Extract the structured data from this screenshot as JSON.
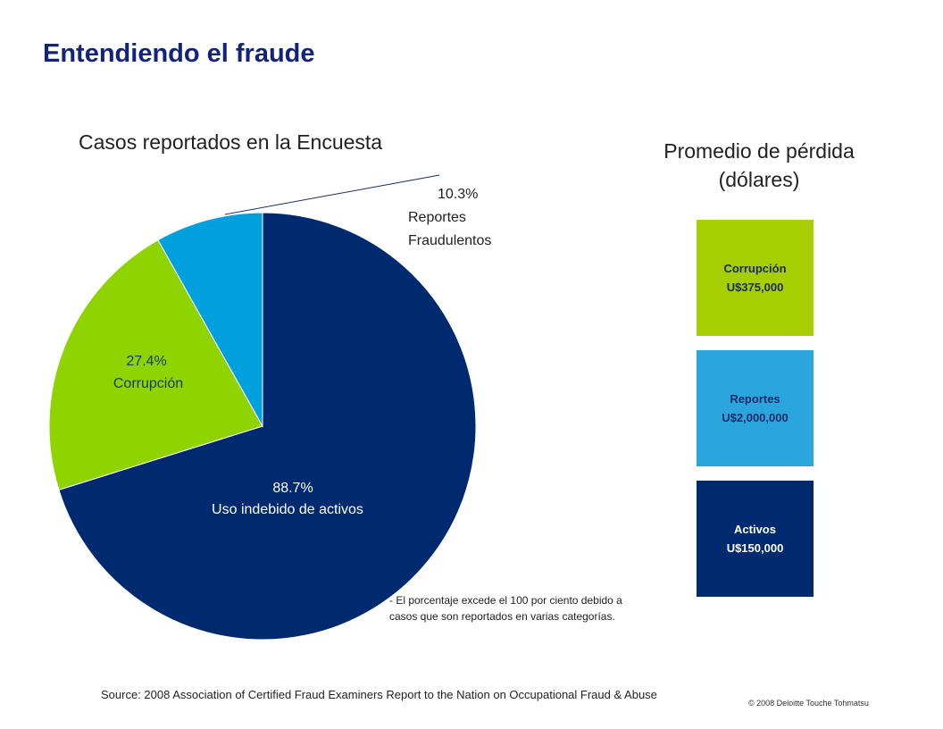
{
  "title": "Entendiendo el fraude",
  "chart_data": [
    {
      "type": "pie",
      "title": "Casos reportados en la Encuesta",
      "slices": [
        {
          "label_pct": "88.7%",
          "label_name": "Uso indebido de activos",
          "value": 88.7,
          "color": "#002a6f"
        },
        {
          "label_pct": "27.4%",
          "label_name": "Corrupción",
          "value": 27.4,
          "color": "#8fd400"
        },
        {
          "label_pct": "10.3%",
          "label_name_1": "Reportes",
          "label_name_2": "Fraudulentos",
          "value": 10.3,
          "color": "#00a0df"
        }
      ]
    },
    {
      "type": "table",
      "title_line1": "Promedio de pérdida",
      "title_line2": "(dólares)",
      "boxes": [
        {
          "name": "Corrupción",
          "amount": "U$375,000",
          "value": 375000,
          "color": "#a6ce00",
          "text_color": "#1a2a6c"
        },
        {
          "name": "Reportes",
          "amount": "U$2,000,000",
          "value": 2000000,
          "color": "#2ba6dc",
          "text_color": "#1a2a6c"
        },
        {
          "name": "Activos",
          "amount": "U$150,000",
          "value": 150000,
          "color": "#002a6f",
          "text_color": "#ffffff"
        }
      ]
    }
  ],
  "note_line1": "- El porcentaje excede el 100 por ciento debido a",
  "note_line2": "casos que son reportados en varias categorías.",
  "source": "Source:  2008 Association of Certified Fraud Examiners Report to the Nation on Occupational Fraud & Abuse",
  "copyright": "© 2008 Deloitte Touche Tohmatsu"
}
